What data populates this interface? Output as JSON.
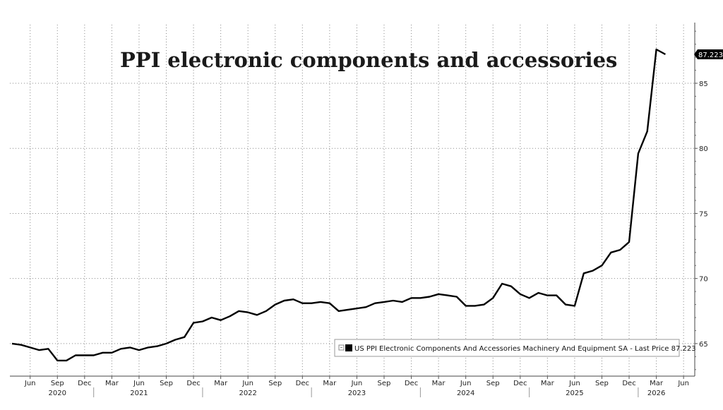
{
  "chart_data": {
    "type": "line",
    "title": "PPI electronic components and accessories",
    "y_ticks": [
      65,
      70,
      75,
      80,
      85
    ],
    "ylim": [
      62.5,
      89.5
    ],
    "x_month_ticks": [
      {
        "label": "Jun",
        "date": "2020-06"
      },
      {
        "label": "Sep",
        "date": "2020-09"
      },
      {
        "label": "Dec",
        "date": "2020-12"
      },
      {
        "label": "Mar",
        "date": "2021-03"
      },
      {
        "label": "Jun",
        "date": "2021-06"
      },
      {
        "label": "Sep",
        "date": "2021-09"
      },
      {
        "label": "Dec",
        "date": "2021-12"
      },
      {
        "label": "Mar",
        "date": "2022-03"
      },
      {
        "label": "Jun",
        "date": "2022-06"
      },
      {
        "label": "Sep",
        "date": "2022-09"
      },
      {
        "label": "Dec",
        "date": "2022-12"
      },
      {
        "label": "Mar",
        "date": "2023-03"
      },
      {
        "label": "Jun",
        "date": "2023-06"
      },
      {
        "label": "Sep",
        "date": "2023-09"
      },
      {
        "label": "Dec",
        "date": "2023-12"
      },
      {
        "label": "Mar",
        "date": "2024-03"
      },
      {
        "label": "Jun",
        "date": "2024-06"
      },
      {
        "label": "Sep",
        "date": "2024-09"
      },
      {
        "label": "Dec",
        "date": "2024-12"
      },
      {
        "label": "Mar",
        "date": "2025-03"
      },
      {
        "label": "Jun",
        "date": "2025-06"
      },
      {
        "label": "Sep",
        "date": "2025-09"
      },
      {
        "label": "Dec",
        "date": "2025-12"
      },
      {
        "label": "Mar",
        "date": "2026-03"
      },
      {
        "label": "Jun",
        "date": "2026-06"
      }
    ],
    "x_year_labels": [
      {
        "label": "2020",
        "date": "2020-09"
      },
      {
        "label": "2021",
        "date": "2021-06"
      },
      {
        "label": "2022",
        "date": "2022-06"
      },
      {
        "label": "2023",
        "date": "2023-06"
      },
      {
        "label": "2024",
        "date": "2024-06"
      },
      {
        "label": "2025",
        "date": "2025-06"
      },
      {
        "label": "2026",
        "date": "2026-03"
      }
    ],
    "series": [
      {
        "name": "US PPI Electronic Components And Accessories Machinery And Equipment SA",
        "color": "#000000",
        "last_price": "87.223",
        "points": [
          [
            "2020-04",
            65.0
          ],
          [
            "2020-05",
            64.9
          ],
          [
            "2020-06",
            64.7
          ],
          [
            "2020-07",
            64.5
          ],
          [
            "2020-08",
            64.6
          ],
          [
            "2020-09",
            63.7
          ],
          [
            "2020-10",
            63.7
          ],
          [
            "2020-11",
            64.1
          ],
          [
            "2020-12",
            64.1
          ],
          [
            "2021-01",
            64.1
          ],
          [
            "2021-02",
            64.3
          ],
          [
            "2021-03",
            64.3
          ],
          [
            "2021-04",
            64.6
          ],
          [
            "2021-05",
            64.7
          ],
          [
            "2021-06",
            64.5
          ],
          [
            "2021-07",
            64.7
          ],
          [
            "2021-08",
            64.8
          ],
          [
            "2021-09",
            65.0
          ],
          [
            "2021-10",
            65.3
          ],
          [
            "2021-11",
            65.5
          ],
          [
            "2021-12",
            66.6
          ],
          [
            "2022-01",
            66.7
          ],
          [
            "2022-02",
            67.0
          ],
          [
            "2022-03",
            66.8
          ],
          [
            "2022-04",
            67.1
          ],
          [
            "2022-05",
            67.5
          ],
          [
            "2022-06",
            67.4
          ],
          [
            "2022-07",
            67.2
          ],
          [
            "2022-08",
            67.5
          ],
          [
            "2022-09",
            68.0
          ],
          [
            "2022-10",
            68.3
          ],
          [
            "2022-11",
            68.4
          ],
          [
            "2022-12",
            68.1
          ],
          [
            "2023-01",
            68.1
          ],
          [
            "2023-02",
            68.2
          ],
          [
            "2023-03",
            68.1
          ],
          [
            "2023-04",
            67.5
          ],
          [
            "2023-05",
            67.6
          ],
          [
            "2023-06",
            67.7
          ],
          [
            "2023-07",
            67.8
          ],
          [
            "2023-08",
            68.1
          ],
          [
            "2023-09",
            68.2
          ],
          [
            "2023-10",
            68.3
          ],
          [
            "2023-11",
            68.2
          ],
          [
            "2023-12",
            68.5
          ],
          [
            "2024-01",
            68.5
          ],
          [
            "2024-02",
            68.6
          ],
          [
            "2024-03",
            68.8
          ],
          [
            "2024-04",
            68.7
          ],
          [
            "2024-05",
            68.6
          ],
          [
            "2024-06",
            67.9
          ],
          [
            "2024-07",
            67.9
          ],
          [
            "2024-08",
            68.0
          ],
          [
            "2024-09",
            68.5
          ],
          [
            "2024-10",
            69.6
          ],
          [
            "2024-11",
            69.4
          ],
          [
            "2024-12",
            68.8
          ],
          [
            "2025-01",
            68.5
          ],
          [
            "2025-02",
            68.9
          ],
          [
            "2025-03",
            68.7
          ],
          [
            "2025-04",
            68.7
          ],
          [
            "2025-05",
            68.0
          ],
          [
            "2025-06",
            67.9
          ],
          [
            "2025-07",
            70.4
          ],
          [
            "2025-08",
            70.6
          ],
          [
            "2025-09",
            71.0
          ],
          [
            "2025-10",
            72.0
          ],
          [
            "2025-11",
            72.2
          ],
          [
            "2025-12",
            72.8
          ],
          [
            "2026-01",
            79.6
          ],
          [
            "2026-02",
            81.3
          ],
          [
            "2026-03",
            87.6
          ],
          [
            "2026-04",
            87.223
          ]
        ]
      }
    ],
    "legend": {
      "text": "US PPI Electronic Components And Accessories Machinery And Equipment SA - Last Price 87.223",
      "placement": "bottom-right"
    },
    "grid": true
  }
}
